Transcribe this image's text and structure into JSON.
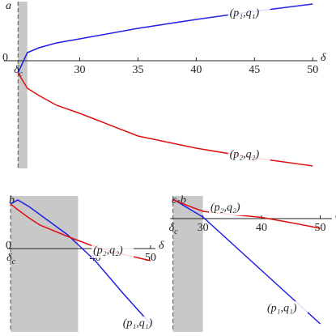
{
  "chart_data": [
    {
      "type": "line",
      "title": "a",
      "x_label": "δ",
      "critical_label": "δ",
      "critical_sub": "c",
      "xcrit": 24.7,
      "shade": [
        24.7,
        25.5
      ],
      "xlim": [
        23.5,
        50.4
      ],
      "ylim": [
        -13.3,
        7.5
      ],
      "xticks": [
        30,
        35,
        40,
        45,
        50
      ],
      "yticks": [
        0
      ],
      "x": [
        24.7,
        25.5,
        26.5,
        28,
        30,
        35,
        40,
        45,
        50
      ],
      "series": [
        {
          "name": "(p₁,q₁)",
          "color": "#1f1fe6",
          "values": [
            -1.5,
            1.0,
            1.6,
            2.2,
            2.7,
            4.0,
            5.1,
            6.1,
            7.0
          ]
        },
        {
          "name": "(p₂,q₂)",
          "color": "#e01010",
          "values": [
            -1.5,
            -3.4,
            -4.3,
            -5.5,
            -6.5,
            -9.3,
            -10.8,
            -12.0,
            -13.0
          ]
        }
      ]
    },
    {
      "type": "line",
      "title": "b",
      "x_label": "δ",
      "critical_label": "δ",
      "critical_sub": "c",
      "xcrit": 24.7,
      "shade": [
        24.7,
        36.9
      ],
      "xlim": [
        24.1,
        50.9
      ],
      "ylim": [
        -10.3,
        6.7
      ],
      "xticks": [
        40,
        50
      ],
      "yticks": [
        0
      ],
      "x": [
        24.7,
        26,
        28,
        30,
        35,
        40,
        45,
        50
      ],
      "series": [
        {
          "name": "(p₁,q₁)",
          "color": "#1f1fe6",
          "values": [
            5.5,
            6.0,
            5.2,
            4.2,
            1.7,
            -1.5,
            -5.5,
            -9.3
          ]
        },
        {
          "name": "(p₂,q₂)",
          "color": "#e01010",
          "values": [
            5.5,
            4.8,
            3.8,
            2.9,
            1.5,
            0.2,
            -0.7,
            -1.5
          ]
        }
      ]
    },
    {
      "type": "line",
      "title": "c-b",
      "x_label": "δ",
      "critical_label": "δ",
      "critical_sub": "c",
      "xcrit": 24.9,
      "shade": [
        24.9,
        30
      ],
      "xlim": [
        24.4,
        52.0
      ],
      "ylim": [
        -14,
        3
      ],
      "xticks": [
        30,
        40,
        50
      ],
      "yticks": [],
      "x": [
        24.9,
        30,
        35,
        40,
        45,
        50
      ],
      "series": [
        {
          "name": "(p₁,q₁)",
          "color": "#1f1fe6",
          "values": [
            2.4,
            0.2,
            -3.1,
            -6.4,
            -9.7,
            -13.0
          ]
        },
        {
          "name": "(p₂,q₂)",
          "color": "#e01010",
          "values": [
            2.3,
            0.9,
            0.5,
            0.15,
            -0.5,
            -1.2
          ]
        }
      ]
    }
  ]
}
